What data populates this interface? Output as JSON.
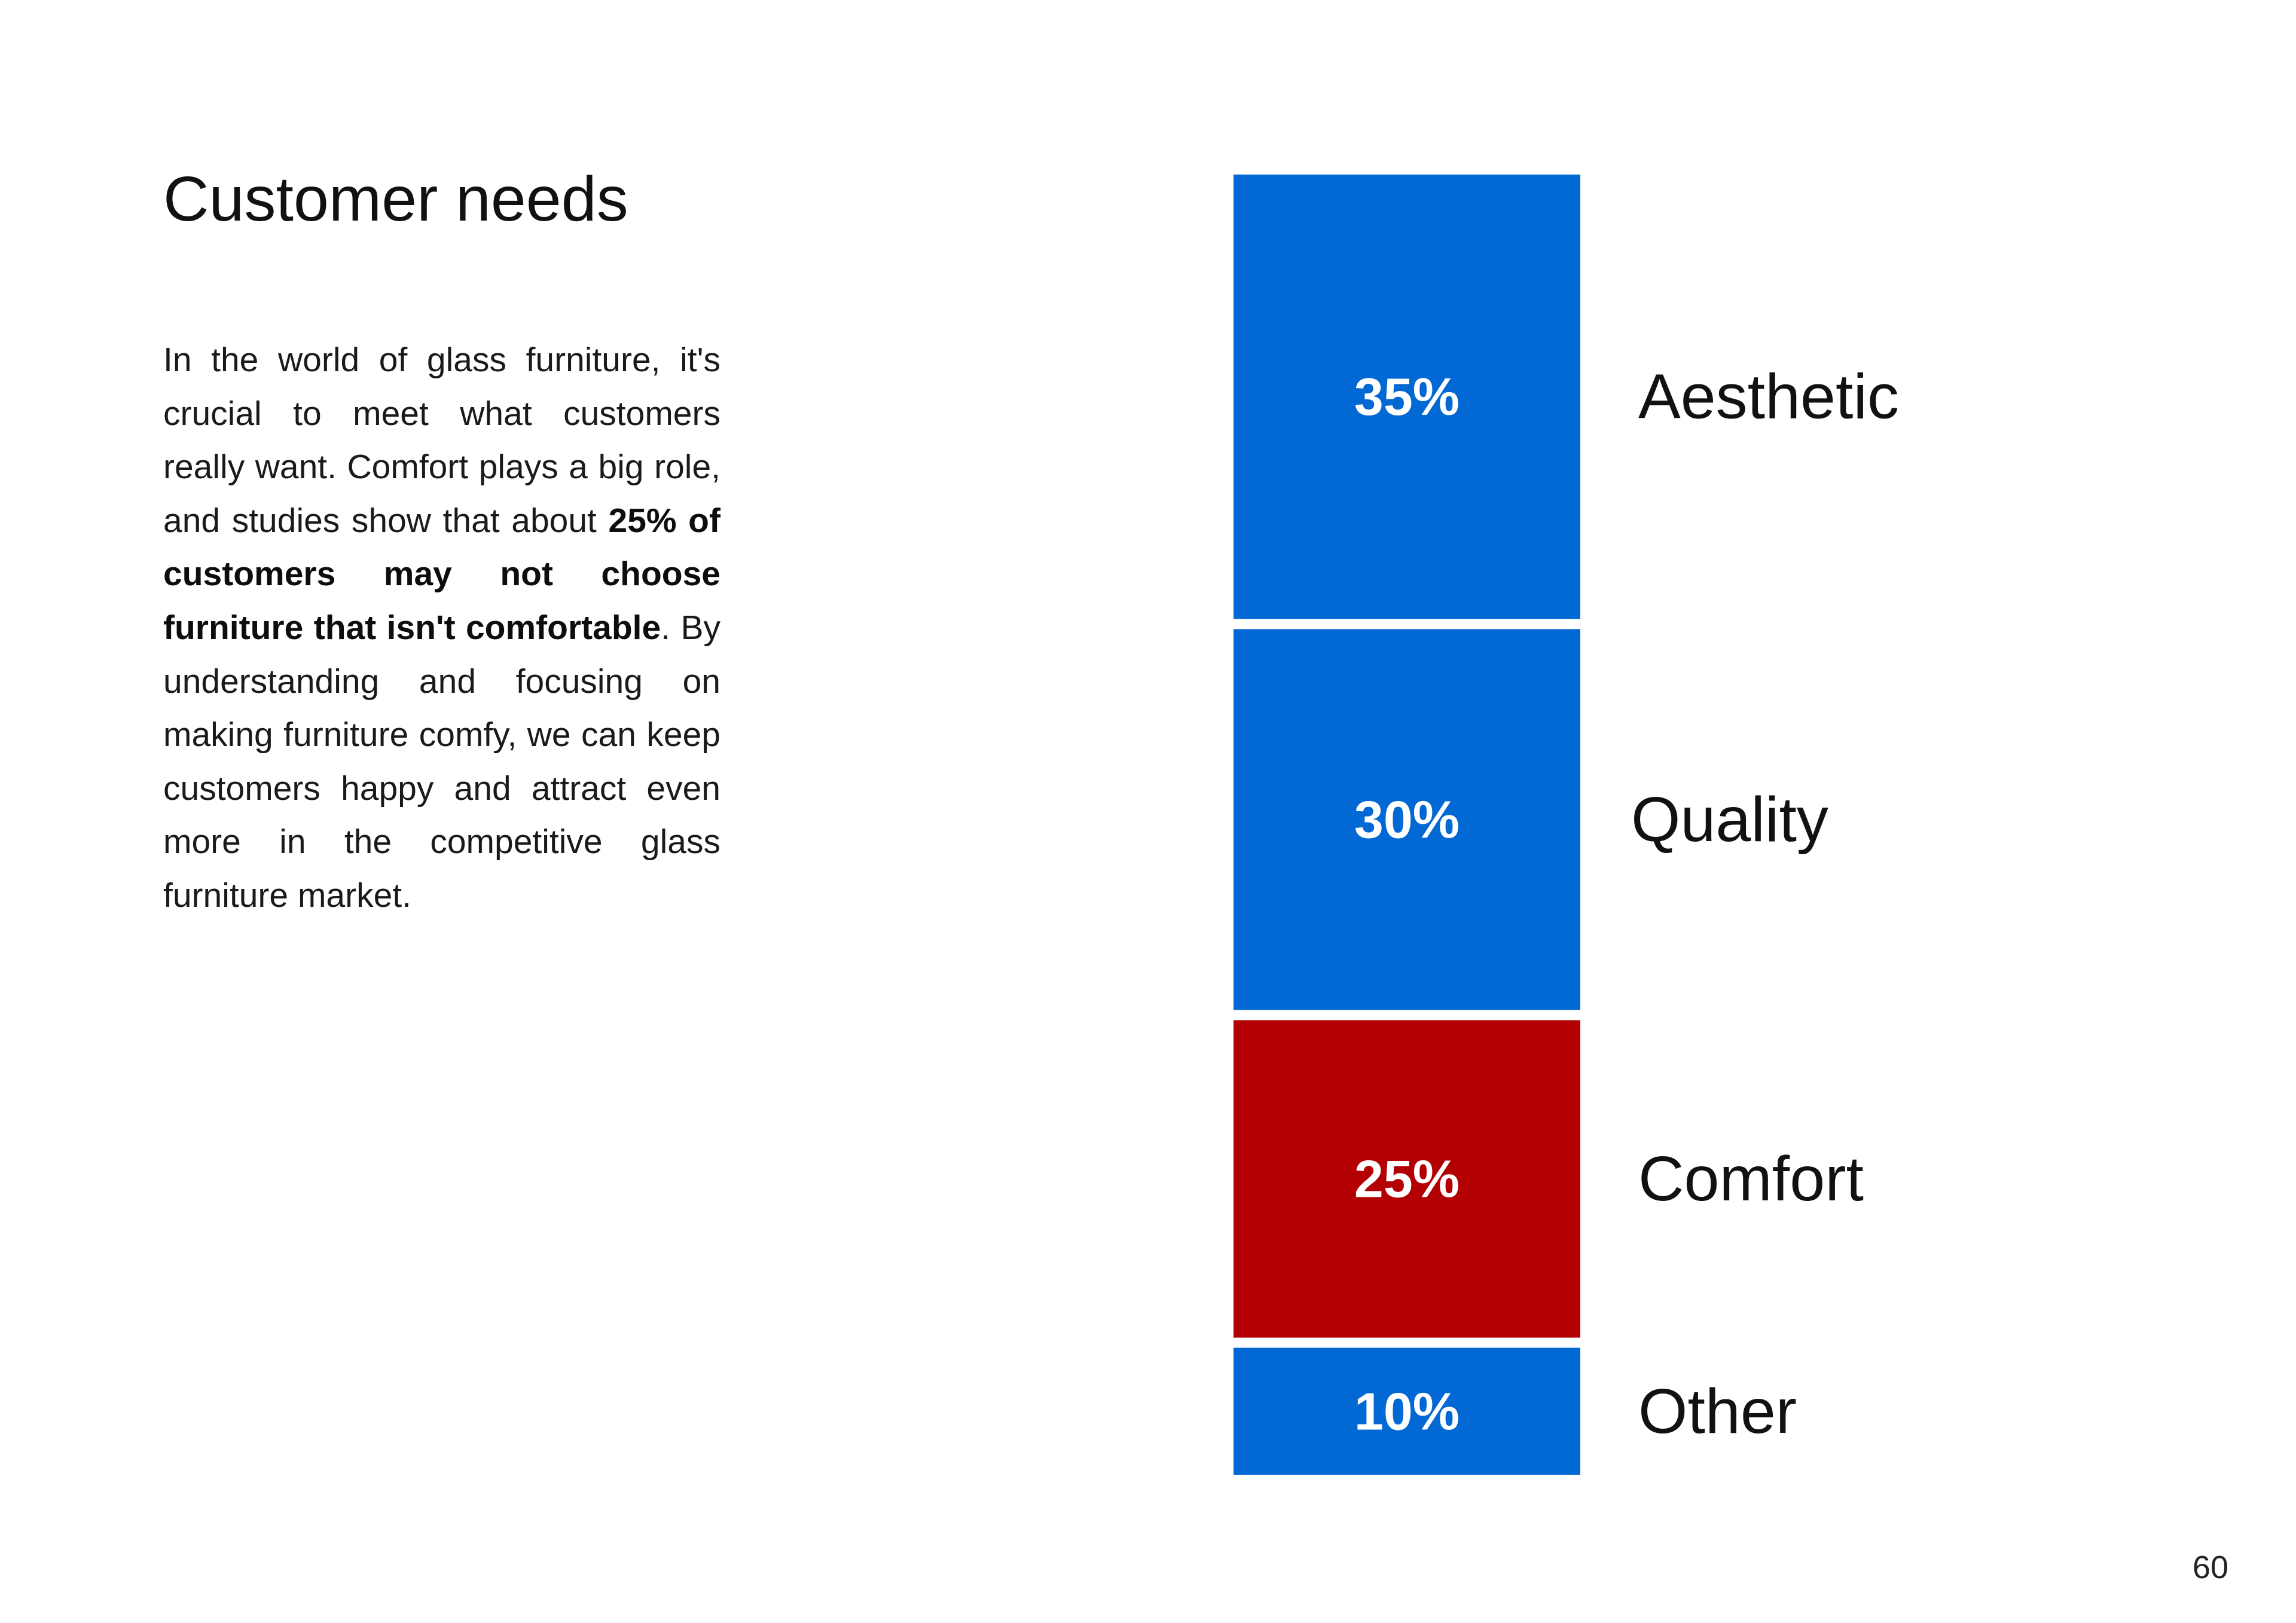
{
  "page": {
    "title": "Customer needs",
    "paragraph": {
      "before_bold": "In the world of glass furniture, it's crucial to meet what customers really want. Comfort plays a big role, and studies show that about ",
      "bold": "25% of customers may not choose furniture that isn't comfortable",
      "after_bold": ". By understanding and focusing on making furniture comfy, we can keep customers happy and attract even more in the competitive glass furniture market."
    },
    "page_number": "60"
  },
  "chart_data": {
    "type": "bar",
    "orientation": "stacked-vertical",
    "categories": [
      "Aesthetic",
      "Quality",
      "Comfort",
      "Other"
    ],
    "values": [
      35,
      30,
      25,
      10
    ],
    "value_labels": [
      "35%",
      "30%",
      "25%",
      "10%"
    ],
    "colors": [
      "#0268d4",
      "#0268d4",
      "#b30003",
      "#0268d4"
    ],
    "title": "",
    "xlabel": "",
    "ylabel": "",
    "legend": "none",
    "grid": false
  }
}
